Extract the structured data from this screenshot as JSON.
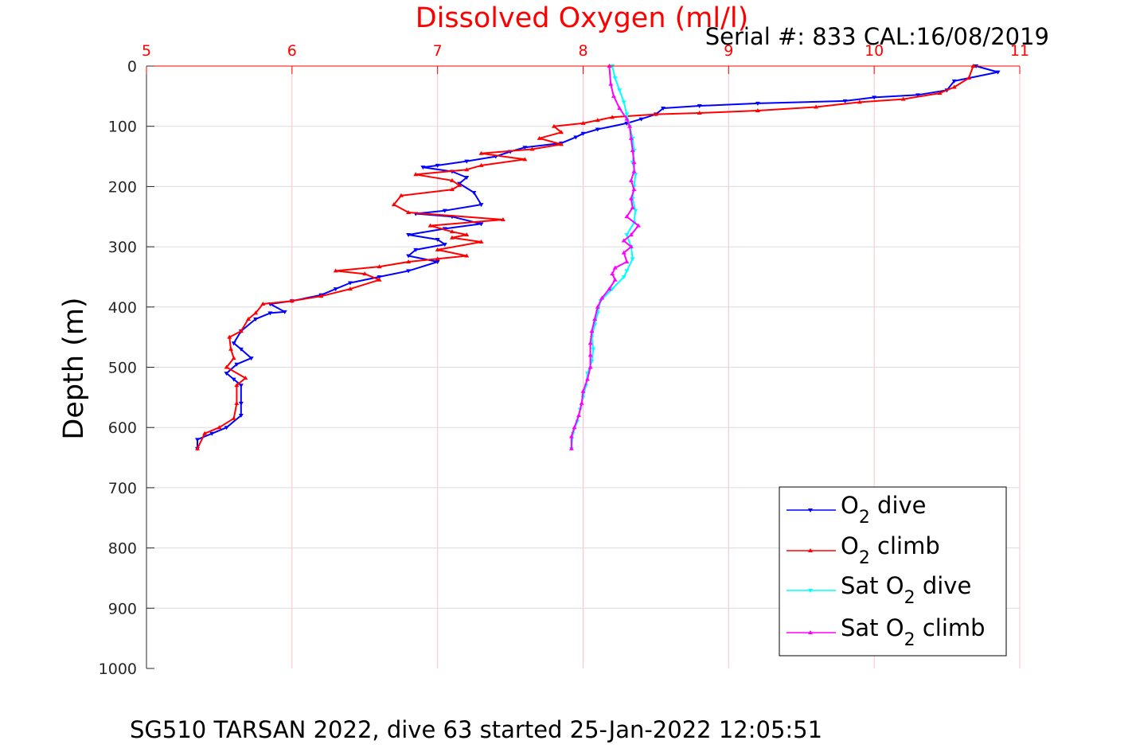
{
  "chart_data": {
    "type": "line",
    "title": "Dissolved Oxygen (ml/l)",
    "subtitle": "Serial #: 833  CAL:16/08/2019",
    "xlabel": "",
    "ylabel": "Depth (m)",
    "footer": "SG510 TARSAN 2022, dive 63 started 25-Jan-2022 12:05:51",
    "xlim": [
      5,
      11
    ],
    "ylim": [
      0,
      1000
    ],
    "y_reversed": true,
    "x_axis_position": "top",
    "x_ticks": [
      5,
      6,
      7,
      8,
      9,
      10,
      11
    ],
    "y_ticks": [
      0,
      100,
      200,
      300,
      400,
      500,
      600,
      700,
      800,
      900,
      1000
    ],
    "grid": true,
    "legend_position": "bottom-right",
    "colors": {
      "title": "#ff0000",
      "x_tick_labels": "#ff0000",
      "x_grid": "#ffc0cb",
      "y_grid": "#dcdcdc"
    },
    "series": [
      {
        "name": "O2 dive",
        "legend": [
          "O",
          "2",
          " dive"
        ],
        "color": "#0000ff",
        "marker": "down-triangle",
        "points": [
          [
            10.7,
            0
          ],
          [
            10.85,
            10
          ],
          [
            10.55,
            25
          ],
          [
            10.5,
            40
          ],
          [
            10.3,
            48
          ],
          [
            10.0,
            52
          ],
          [
            9.8,
            58
          ],
          [
            9.2,
            62
          ],
          [
            8.8,
            66
          ],
          [
            8.55,
            70
          ],
          [
            8.5,
            80
          ],
          [
            8.4,
            88
          ],
          [
            8.3,
            95
          ],
          [
            8.1,
            105
          ],
          [
            8.0,
            112
          ],
          [
            7.95,
            118
          ],
          [
            7.85,
            128
          ],
          [
            7.6,
            135
          ],
          [
            7.5,
            142
          ],
          [
            7.4,
            150
          ],
          [
            7.2,
            158
          ],
          [
            7.0,
            165
          ],
          [
            6.9,
            168
          ],
          [
            7.1,
            175
          ],
          [
            7.2,
            185
          ],
          [
            7.15,
            195
          ],
          [
            7.25,
            210
          ],
          [
            7.3,
            230
          ],
          [
            7.05,
            240
          ],
          [
            6.85,
            245
          ],
          [
            7.1,
            250
          ],
          [
            7.3,
            262
          ],
          [
            7.05,
            270
          ],
          [
            6.8,
            280
          ],
          [
            7.0,
            288
          ],
          [
            7.05,
            296
          ],
          [
            6.85,
            305
          ],
          [
            6.8,
            315
          ],
          [
            7.0,
            325
          ],
          [
            6.8,
            340
          ],
          [
            6.6,
            350
          ],
          [
            6.4,
            360
          ],
          [
            6.3,
            370
          ],
          [
            6.2,
            380
          ],
          [
            6.0,
            390
          ],
          [
            5.85,
            395
          ],
          [
            5.95,
            408
          ],
          [
            5.85,
            410
          ],
          [
            5.75,
            420
          ],
          [
            5.65,
            440
          ],
          [
            5.6,
            460
          ],
          [
            5.65,
            470
          ],
          [
            5.72,
            485
          ],
          [
            5.62,
            495
          ],
          [
            5.55,
            510
          ],
          [
            5.6,
            520
          ],
          [
            5.65,
            530
          ],
          [
            5.65,
            560
          ],
          [
            5.65,
            580
          ],
          [
            5.55,
            600
          ],
          [
            5.45,
            610
          ],
          [
            5.35,
            620
          ],
          [
            5.35,
            635
          ]
        ]
      },
      {
        "name": "O2 climb",
        "legend": [
          "O",
          "2",
          " climb"
        ],
        "color": "#ff0000",
        "marker": "up-triangle",
        "points": [
          [
            5.35,
            635
          ],
          [
            5.4,
            610
          ],
          [
            5.5,
            600
          ],
          [
            5.6,
            585
          ],
          [
            5.62,
            560
          ],
          [
            5.62,
            530
          ],
          [
            5.68,
            518
          ],
          [
            5.55,
            500
          ],
          [
            5.6,
            485
          ],
          [
            5.58,
            470
          ],
          [
            5.57,
            450
          ],
          [
            5.65,
            440
          ],
          [
            5.7,
            420
          ],
          [
            5.75,
            410
          ],
          [
            5.8,
            395
          ],
          [
            6.0,
            390
          ],
          [
            6.2,
            382
          ],
          [
            6.4,
            370
          ],
          [
            6.6,
            355
          ],
          [
            6.5,
            345
          ],
          [
            6.3,
            340
          ],
          [
            6.6,
            333
          ],
          [
            6.8,
            325
          ],
          [
            7.0,
            320
          ],
          [
            7.2,
            315
          ],
          [
            7.0,
            305
          ],
          [
            7.3,
            292
          ],
          [
            7.1,
            285
          ],
          [
            7.2,
            280
          ],
          [
            7.1,
            275
          ],
          [
            6.95,
            265
          ],
          [
            7.45,
            255
          ],
          [
            6.8,
            243
          ],
          [
            6.7,
            230
          ],
          [
            6.75,
            215
          ],
          [
            7.1,
            205
          ],
          [
            7.15,
            198
          ],
          [
            7.1,
            190
          ],
          [
            6.85,
            180
          ],
          [
            7.2,
            172
          ],
          [
            7.3,
            165
          ],
          [
            7.6,
            155
          ],
          [
            7.3,
            145
          ],
          [
            7.65,
            138
          ],
          [
            7.85,
            130
          ],
          [
            7.7,
            120
          ],
          [
            7.85,
            110
          ],
          [
            7.8,
            100
          ],
          [
            8.0,
            95
          ],
          [
            8.1,
            90
          ],
          [
            8.2,
            85
          ],
          [
            8.5,
            80
          ],
          [
            8.8,
            78
          ],
          [
            9.2,
            74
          ],
          [
            9.6,
            68
          ],
          [
            9.9,
            60
          ],
          [
            10.2,
            55
          ],
          [
            10.45,
            45
          ],
          [
            10.55,
            35
          ],
          [
            10.65,
            20
          ],
          [
            10.68,
            0
          ]
        ]
      },
      {
        "name": "Sat O2 dive",
        "legend": [
          "Sat O",
          "2",
          " dive"
        ],
        "color": "#00ffff",
        "marker": "down-triangle",
        "points": [
          [
            8.2,
            0
          ],
          [
            8.22,
            20
          ],
          [
            8.25,
            40
          ],
          [
            8.28,
            60
          ],
          [
            8.3,
            80
          ],
          [
            8.32,
            100
          ],
          [
            8.34,
            120
          ],
          [
            8.35,
            140
          ],
          [
            8.34,
            160
          ],
          [
            8.36,
            180
          ],
          [
            8.35,
            200
          ],
          [
            8.34,
            220
          ],
          [
            8.36,
            240
          ],
          [
            8.35,
            260
          ],
          [
            8.3,
            280
          ],
          [
            8.33,
            300
          ],
          [
            8.34,
            320
          ],
          [
            8.3,
            340
          ],
          [
            8.28,
            350
          ],
          [
            8.2,
            370
          ],
          [
            8.12,
            390
          ],
          [
            8.1,
            410
          ],
          [
            8.08,
            430
          ],
          [
            8.06,
            450
          ],
          [
            8.07,
            470
          ],
          [
            8.06,
            490
          ],
          [
            8.03,
            510
          ],
          [
            8.02,
            530
          ],
          [
            8.0,
            550
          ],
          [
            7.98,
            570
          ],
          [
            7.96,
            590
          ],
          [
            7.93,
            610
          ],
          [
            7.92,
            635
          ]
        ]
      },
      {
        "name": "Sat O2 climb",
        "legend": [
          "Sat O",
          "2",
          " climb"
        ],
        "color": "#ff00ff",
        "marker": "up-triangle",
        "points": [
          [
            7.92,
            635
          ],
          [
            7.92,
            615
          ],
          [
            7.94,
            600
          ],
          [
            7.97,
            580
          ],
          [
            7.99,
            560
          ],
          [
            8.0,
            540
          ],
          [
            8.03,
            520
          ],
          [
            8.05,
            500
          ],
          [
            8.05,
            480
          ],
          [
            8.05,
            460
          ],
          [
            8.06,
            440
          ],
          [
            8.08,
            420
          ],
          [
            8.1,
            400
          ],
          [
            8.13,
            385
          ],
          [
            8.18,
            370
          ],
          [
            8.22,
            355
          ],
          [
            8.2,
            345
          ],
          [
            8.22,
            335
          ],
          [
            8.3,
            325
          ],
          [
            8.28,
            310
          ],
          [
            8.33,
            300
          ],
          [
            8.28,
            290
          ],
          [
            8.33,
            280
          ],
          [
            8.38,
            265
          ],
          [
            8.3,
            250
          ],
          [
            8.34,
            235
          ],
          [
            8.33,
            220
          ],
          [
            8.35,
            205
          ],
          [
            8.33,
            190
          ],
          [
            8.35,
            175
          ],
          [
            8.35,
            160
          ],
          [
            8.34,
            140
          ],
          [
            8.33,
            120
          ],
          [
            8.32,
            100
          ],
          [
            8.3,
            88
          ],
          [
            8.25,
            70
          ],
          [
            8.21,
            50
          ],
          [
            8.19,
            30
          ],
          [
            8.18,
            0
          ]
        ]
      }
    ]
  }
}
